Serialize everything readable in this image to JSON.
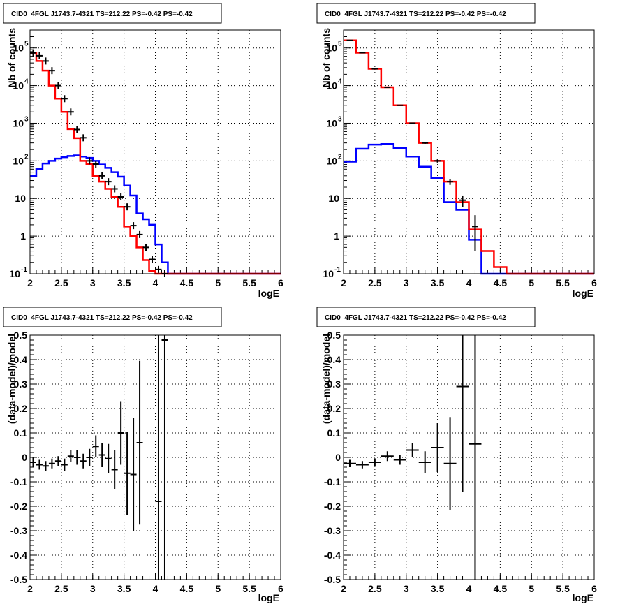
{
  "chart_data": [
    {
      "id": "counts-fine",
      "type": "line",
      "title": "CID0_4FGL J1743.7-4321 TS=212.22 PS=-0.42 PS=-0.42",
      "xlabel": "logE",
      "ylabel": "Nb of counts",
      "xlim": [
        2,
        6
      ],
      "ylim": [
        0.1,
        300000
      ],
      "yscale": "log",
      "grid": true,
      "xticks": [
        "2",
        "2.5",
        "3",
        "3.5",
        "4",
        "4.5",
        "5",
        "5.5",
        "6"
      ],
      "yticks": [
        {
          "value": 0.1,
          "base": "10",
          "exp": "-1"
        },
        {
          "value": 1,
          "label": "1"
        },
        {
          "value": 10,
          "label": "10"
        },
        {
          "value": 100,
          "base": "10",
          "exp": "2"
        },
        {
          "value": 1000,
          "base": "10",
          "exp": "3"
        },
        {
          "value": 10000,
          "base": "10",
          "exp": "4"
        },
        {
          "value": 100000,
          "base": "10",
          "exp": "5"
        }
      ],
      "bin_edges": [
        2.0,
        2.1,
        2.2,
        2.3,
        2.4,
        2.5,
        2.6,
        2.7,
        2.8,
        2.9,
        3.0,
        3.1,
        3.2,
        3.3,
        3.4,
        3.5,
        3.6,
        3.7,
        3.8,
        3.9,
        4.0,
        4.1,
        4.2,
        4.3,
        4.4,
        4.5,
        4.6,
        4.7,
        4.8,
        4.9,
        5.0,
        5.1,
        5.2,
        5.3,
        5.4,
        5.5,
        5.6,
        5.7,
        5.8,
        5.9,
        6.0
      ],
      "series": [
        {
          "kind": "hist",
          "color": "#0000ff",
          "values": [
            40,
            60,
            85,
            100,
            115,
            125,
            135,
            140,
            130,
            120,
            100,
            80,
            65,
            50,
            38,
            22,
            12,
            4,
            2.8,
            2,
            0.6,
            0.2,
            0.1,
            0.1,
            0.1,
            0.1,
            0.1,
            0.1,
            0.1,
            0.1,
            0.1,
            0.1,
            0.1,
            0.1,
            0.1,
            0.1,
            0.1,
            0.1,
            0.1,
            0.1
          ]
        },
        {
          "kind": "hist",
          "color": "#ff0000",
          "values": [
            75000,
            45000,
            25000,
            10000,
            4500,
            2000,
            700,
            400,
            100,
            82,
            40,
            28,
            18,
            11,
            6,
            1.8,
            1.0,
            0.5,
            0.23,
            0.12,
            0.06,
            0.05,
            0.05,
            0.05,
            0.05,
            0.05,
            0.05,
            0.05,
            0.05,
            0.05,
            0.05,
            0.05,
            0.05,
            0.05,
            0.05,
            0.05,
            0.05,
            0.05,
            0.05,
            0.05
          ]
        },
        {
          "kind": "points",
          "color": "#000000",
          "x": [
            2.05,
            2.15,
            2.25,
            2.35,
            2.45,
            2.55,
            2.65,
            2.75,
            2.85,
            2.95,
            3.05,
            3.15,
            3.25,
            3.35,
            3.45,
            3.55,
            3.65,
            3.75,
            3.85,
            3.95,
            4.05,
            4.15
          ],
          "y": [
            74000,
            62000,
            45000,
            25000,
            10000,
            4500,
            2000,
            680,
            410,
            100,
            82,
            40,
            28,
            18,
            11,
            6,
            1.9,
            1.1,
            0.5,
            0.24,
            0.13,
            0.06
          ]
        }
      ]
    },
    {
      "id": "counts-coarse",
      "type": "line",
      "title": "CID0_4FGL J1743.7-4321 TS=212.22 PS=-0.42 PS=-0.42",
      "xlabel": "logE",
      "ylabel": "Nb of counts",
      "xlim": [
        2,
        6
      ],
      "ylim": [
        0.1,
        300000
      ],
      "yscale": "log",
      "grid": true,
      "xticks": [
        "2",
        "2.5",
        "3",
        "3.5",
        "4",
        "4.5",
        "5",
        "5.5",
        "6"
      ],
      "yticks": [
        {
          "value": 0.1,
          "base": "10",
          "exp": "-1"
        },
        {
          "value": 1,
          "label": "1"
        },
        {
          "value": 10,
          "label": "10"
        },
        {
          "value": 100,
          "base": "10",
          "exp": "2"
        },
        {
          "value": 1000,
          "base": "10",
          "exp": "3"
        },
        {
          "value": 10000,
          "base": "10",
          "exp": "4"
        },
        {
          "value": 100000,
          "base": "10",
          "exp": "5"
        }
      ],
      "bin_edges": [
        2.0,
        2.2,
        2.4,
        2.6,
        2.8,
        3.0,
        3.2,
        3.4,
        3.6,
        3.8,
        4.0,
        4.2,
        4.4,
        4.6,
        4.8,
        5.0,
        5.2,
        5.4,
        5.6,
        5.8,
        6.0
      ],
      "series": [
        {
          "kind": "hist",
          "color": "#0000ff",
          "values": [
            95,
            210,
            270,
            280,
            220,
            130,
            70,
            35,
            8,
            5,
            0.8,
            0.1,
            0.1,
            0.1,
            0.1,
            0.1,
            0.1,
            0.1,
            0.1,
            0.1
          ]
        },
        {
          "kind": "hist",
          "color": "#ff0000",
          "values": [
            160000,
            75000,
            28000,
            9000,
            3000,
            1000,
            300,
            100,
            28,
            8,
            1.5,
            0.4,
            0.15,
            0.1,
            0.1,
            0.1,
            0.1,
            0.1,
            0.1,
            0.1
          ]
        },
        {
          "kind": "points",
          "color": "#000000",
          "x": [
            2.1,
            2.3,
            2.5,
            2.7,
            2.9,
            3.1,
            3.3,
            3.5,
            3.7,
            3.9,
            4.1
          ],
          "y": [
            160000,
            75000,
            28000,
            9000,
            3000,
            1000,
            300,
            100,
            28,
            9,
            1.8
          ],
          "ylow": [
            159000,
            74500,
            27800,
            8900,
            2950,
            970,
            283,
            90,
            23,
            6,
            0.4
          ],
          "yhigh": [
            161000,
            75500,
            28200,
            9100,
            3050,
            1030,
            317,
            110,
            33,
            12,
            3.6
          ]
        }
      ]
    },
    {
      "id": "residual-fine",
      "type": "scatter",
      "title": "CID0_4FGL J1743.7-4321 TS=212.22 PS=-0.42 PS=-0.42",
      "xlabel": "logE",
      "ylabel": "(data-model)/model",
      "xlim": [
        2,
        6
      ],
      "ylim": [
        -0.5,
        0.5
      ],
      "grid": true,
      "xticks": [
        "2",
        "2.5",
        "3",
        "3.5",
        "4",
        "4.5",
        "5",
        "5.5",
        "6"
      ],
      "yticks": [
        "-0.5",
        "-0.4",
        "-0.3",
        "-0.2",
        "-0.1",
        "0",
        "0.1",
        "0.2",
        "0.3",
        "0.4",
        "0.5"
      ],
      "series": [
        {
          "kind": "errorbars",
          "color": "#000000",
          "xhalf": 0.05,
          "x": [
            2.05,
            2.15,
            2.25,
            2.35,
            2.45,
            2.55,
            2.65,
            2.75,
            2.85,
            2.95,
            3.05,
            3.15,
            3.25,
            3.35,
            3.45,
            3.55,
            3.65,
            3.75,
            4.05,
            4.15
          ],
          "y": [
            -0.02,
            -0.03,
            -0.035,
            -0.025,
            -0.015,
            -0.03,
            0.005,
            0.0,
            -0.015,
            0.0,
            0.045,
            0.01,
            -0.005,
            -0.05,
            0.1,
            -0.065,
            -0.07,
            0.06,
            -0.18,
            0.48
          ],
          "err": [
            0.02,
            0.02,
            0.02,
            0.02,
            0.02,
            0.025,
            0.025,
            0.03,
            0.03,
            0.035,
            0.045,
            0.05,
            0.06,
            0.08,
            0.13,
            0.17,
            0.23,
            0.335,
            0.9,
            1.0
          ]
        }
      ]
    },
    {
      "id": "residual-coarse",
      "type": "scatter",
      "title": "CID0_4FGL J1743.7-4321 TS=212.22 PS=-0.42 PS=-0.42",
      "xlabel": "logE",
      "ylabel": "(data-model)/model",
      "xlim": [
        2,
        6
      ],
      "ylim": [
        -0.5,
        0.5
      ],
      "grid": true,
      "xticks": [
        "2",
        "2.5",
        "3",
        "3.5",
        "4",
        "4.5",
        "5",
        "5.5",
        "6"
      ],
      "yticks": [
        "-0.5",
        "-0.4",
        "-0.3",
        "-0.2",
        "-0.1",
        "0",
        "0.1",
        "0.2",
        "0.3",
        "0.4",
        "0.5"
      ],
      "series": [
        {
          "kind": "errorbars",
          "color": "#000000",
          "xhalf": 0.1,
          "x": [
            2.1,
            2.3,
            2.5,
            2.7,
            2.9,
            3.1,
            3.3,
            3.5,
            3.7,
            3.9,
            4.1
          ],
          "y": [
            -0.025,
            -0.03,
            -0.02,
            0.005,
            -0.01,
            0.03,
            -0.02,
            0.04,
            -0.025,
            0.29,
            0.055
          ],
          "err": [
            0.015,
            0.015,
            0.015,
            0.02,
            0.02,
            0.03,
            0.045,
            0.1,
            0.19,
            0.43,
            0.9
          ]
        }
      ]
    }
  ]
}
